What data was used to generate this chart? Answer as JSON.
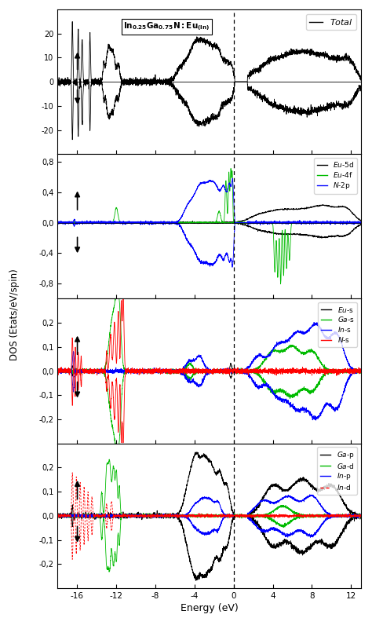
{
  "title": "In_{0.25}Ga_{0.75}N:Eu_{(In)}",
  "xlabel": "Energy (eV)",
  "ylabel": "DOS (Etats/eV/spin)",
  "xmin": -18,
  "xmax": 13,
  "panel1_ylim": [
    -30,
    30
  ],
  "panel2_ylim": [
    -1.0,
    0.9
  ],
  "panel3_ylim": [
    -0.3,
    0.3
  ],
  "panel4_ylim": [
    -0.3,
    0.3
  ],
  "fermi_energy": 0.0,
  "panel1_yticks": [
    -20,
    -10,
    0,
    10,
    20
  ],
  "panel2_yticks": [
    -0.8,
    -0.4,
    0.0,
    0.4,
    0.8
  ],
  "panel3_yticks": [
    -0.2,
    -0.1,
    0.0,
    0.1,
    0.2
  ],
  "panel4_yticks": [
    -0.2,
    -0.1,
    0.0,
    0.1,
    0.2
  ],
  "colors": {
    "total": "#000000",
    "eu5d": "#000000",
    "eu4f": "#00bb00",
    "n2p": "#0000ff",
    "eus": "#000000",
    "gas": "#00bb00",
    "ins": "#0000ff",
    "ns": "#ff0000",
    "gap": "#000000",
    "gad": "#00bb00",
    "inp": "#0000ff",
    "ind": "#ff0000"
  }
}
